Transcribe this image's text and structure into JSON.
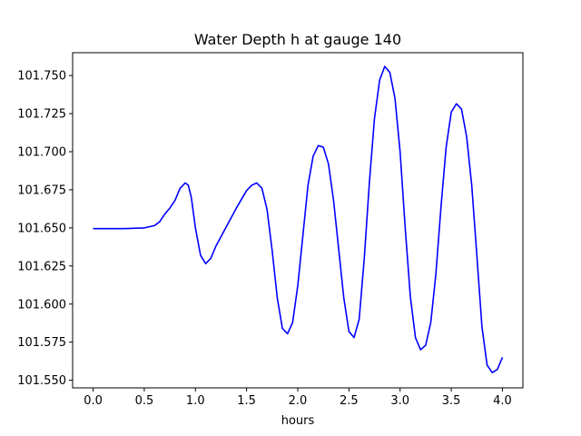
{
  "chart_data": {
    "type": "line",
    "title": "Water Depth h at gauge 140",
    "xlabel": "hours",
    "ylabel": "",
    "xlim": [
      -0.2,
      4.2
    ],
    "ylim": [
      101.545,
      101.765
    ],
    "x_ticks": [
      0.0,
      0.5,
      1.0,
      1.5,
      2.0,
      2.5,
      3.0,
      3.5,
      4.0
    ],
    "x_tick_labels": [
      "0.0",
      "0.5",
      "1.0",
      "1.5",
      "2.0",
      "2.5",
      "3.0",
      "3.5",
      "4.0"
    ],
    "y_ticks": [
      101.55,
      101.575,
      101.6,
      101.625,
      101.65,
      101.675,
      101.7,
      101.725,
      101.75
    ],
    "y_tick_labels": [
      "101.550",
      "101.575",
      "101.600",
      "101.625",
      "101.650",
      "101.675",
      "101.700",
      "101.725",
      "101.750"
    ],
    "grid": false,
    "series": [
      {
        "color": "#0000ff",
        "x": [
          0.0,
          0.3,
          0.5,
          0.6,
          0.65,
          0.7,
          0.75,
          0.8,
          0.85,
          0.9,
          0.93,
          0.96,
          1.0,
          1.05,
          1.1,
          1.15,
          1.2,
          1.3,
          1.4,
          1.5,
          1.55,
          1.6,
          1.65,
          1.7,
          1.75,
          1.8,
          1.85,
          1.9,
          1.95,
          2.0,
          2.05,
          2.1,
          2.15,
          2.2,
          2.25,
          2.3,
          2.35,
          2.4,
          2.45,
          2.5,
          2.55,
          2.6,
          2.65,
          2.7,
          2.75,
          2.8,
          2.85,
          2.9,
          2.95,
          3.0,
          3.05,
          3.1,
          3.15,
          3.2,
          3.25,
          3.3,
          3.35,
          3.4,
          3.45,
          3.5,
          3.55,
          3.6,
          3.65,
          3.7,
          3.75,
          3.8,
          3.85,
          3.9,
          3.95,
          4.0
        ],
        "y": [
          101.6495,
          101.6495,
          101.65,
          101.6515,
          101.654,
          101.659,
          101.663,
          101.668,
          101.676,
          101.6795,
          101.678,
          101.67,
          101.65,
          101.632,
          101.6265,
          101.63,
          101.638,
          101.6505,
          101.663,
          101.6745,
          101.678,
          101.6795,
          101.676,
          101.662,
          101.635,
          101.604,
          101.584,
          101.5805,
          101.588,
          101.612,
          101.645,
          101.678,
          101.697,
          101.704,
          101.703,
          101.692,
          101.668,
          101.636,
          101.604,
          101.582,
          101.578,
          101.59,
          101.63,
          101.68,
          101.722,
          101.747,
          101.756,
          101.752,
          101.735,
          101.7,
          101.65,
          101.605,
          101.578,
          101.57,
          101.573,
          101.588,
          101.62,
          101.664,
          101.703,
          101.726,
          101.7315,
          101.728,
          101.71,
          101.678,
          101.632,
          101.585,
          101.56,
          101.555,
          101.557,
          101.565
        ]
      }
    ]
  }
}
